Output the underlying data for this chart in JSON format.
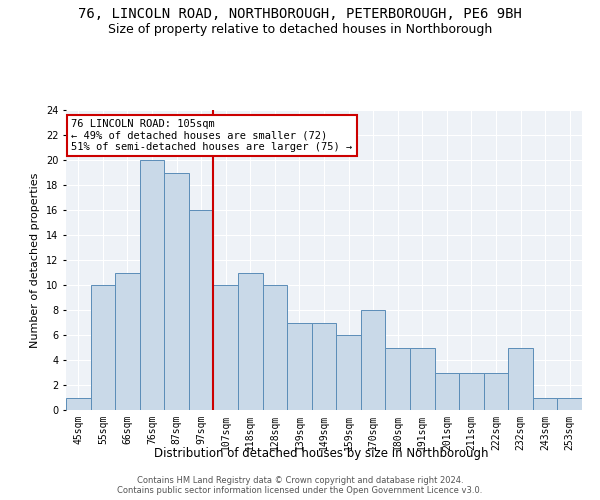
{
  "title": "76, LINCOLN ROAD, NORTHBOROUGH, PETERBOROUGH, PE6 9BH",
  "subtitle": "Size of property relative to detached houses in Northborough",
  "xlabel": "Distribution of detached houses by size in Northborough",
  "ylabel": "Number of detached properties",
  "footer_line1": "Contains HM Land Registry data © Crown copyright and database right 2024.",
  "footer_line2": "Contains public sector information licensed under the Open Government Licence v3.0.",
  "categories": [
    "45sqm",
    "55sqm",
    "66sqm",
    "76sqm",
    "87sqm",
    "97sqm",
    "107sqm",
    "118sqm",
    "128sqm",
    "139sqm",
    "149sqm",
    "159sqm",
    "170sqm",
    "180sqm",
    "191sqm",
    "201sqm",
    "211sqm",
    "222sqm",
    "232sqm",
    "243sqm",
    "253sqm"
  ],
  "values": [
    1,
    10,
    11,
    20,
    19,
    16,
    10,
    11,
    10,
    7,
    7,
    6,
    8,
    5,
    5,
    3,
    3,
    3,
    5,
    1,
    1
  ],
  "bar_color": "#c9d9e8",
  "bar_edge_color": "#5b8db8",
  "highlight_index": 5,
  "highlight_line_color": "#cc0000",
  "annotation_text": "76 LINCOLN ROAD: 105sqm\n← 49% of detached houses are smaller (72)\n51% of semi-detached houses are larger (75) →",
  "annotation_box_color": "#ffffff",
  "annotation_box_edge_color": "#cc0000",
  "ylim": [
    0,
    24
  ],
  "yticks": [
    0,
    2,
    4,
    6,
    8,
    10,
    12,
    14,
    16,
    18,
    20,
    22,
    24
  ],
  "background_color": "#eef2f7",
  "grid_color": "#ffffff",
  "fig_bg_color": "#ffffff",
  "title_fontsize": 10,
  "subtitle_fontsize": 9,
  "xlabel_fontsize": 8.5,
  "ylabel_fontsize": 8,
  "tick_fontsize": 7,
  "annotation_fontsize": 7.5,
  "footer_fontsize": 6
}
